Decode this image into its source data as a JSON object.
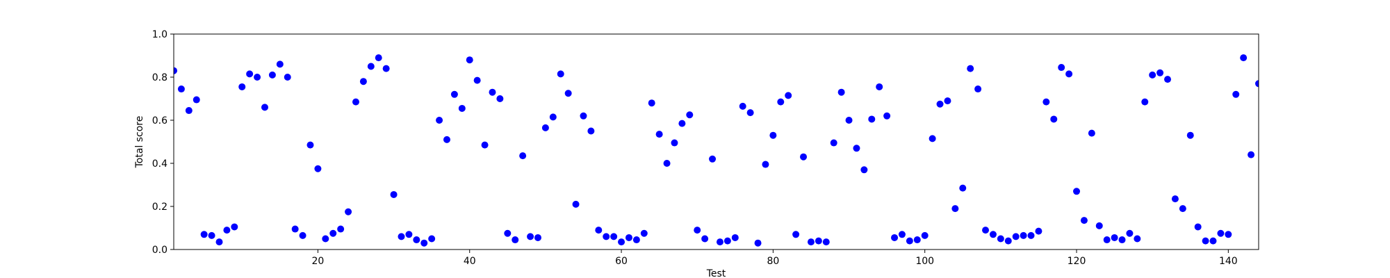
{
  "chart_data": {
    "type": "scatter",
    "xlabel": "Test",
    "ylabel": "Total score",
    "xlim": [
      1,
      144
    ],
    "ylim": [
      0.0,
      1.0
    ],
    "xticks": [
      20,
      40,
      60,
      80,
      100,
      120,
      140
    ],
    "xtick_labels": [
      "20",
      "40",
      "60",
      "80",
      "100",
      "120",
      "140"
    ],
    "yticks": [
      0.0,
      0.2,
      0.4,
      0.6,
      0.8,
      1.0
    ],
    "ytick_labels": [
      "0.0",
      "0.2",
      "0.4",
      "0.6",
      "0.8",
      "1.0"
    ],
    "grid": false,
    "marker_color": "#0000ff",
    "x": [
      1,
      2,
      3,
      4,
      5,
      6,
      7,
      8,
      9,
      10,
      11,
      12,
      13,
      14,
      15,
      16,
      17,
      18,
      19,
      20,
      21,
      22,
      23,
      24,
      25,
      26,
      27,
      28,
      29,
      30,
      31,
      32,
      33,
      34,
      35,
      36,
      37,
      38,
      39,
      40,
      41,
      42,
      43,
      44,
      45,
      46,
      47,
      48,
      49,
      50,
      51,
      52,
      53,
      54,
      55,
      56,
      57,
      58,
      59,
      60,
      61,
      62,
      63,
      64,
      65,
      66,
      67,
      68,
      69,
      70,
      71,
      72,
      73,
      74,
      75,
      76,
      77,
      78,
      79,
      80,
      81,
      82,
      83,
      84,
      85,
      86,
      87,
      88,
      89,
      90,
      91,
      92,
      93,
      94,
      95,
      96,
      97,
      98,
      99,
      100,
      101,
      102,
      103,
      104,
      105,
      106,
      107,
      108,
      109,
      110,
      111,
      112,
      113,
      114,
      115,
      116,
      117,
      118,
      119,
      120,
      121,
      122,
      123,
      124,
      125,
      126,
      127,
      128,
      129,
      130,
      131,
      132,
      133,
      134,
      135,
      136,
      137,
      138,
      139,
      140,
      141,
      142,
      143,
      144
    ],
    "y": [
      0.83,
      0.745,
      0.645,
      0.695,
      0.07,
      0.065,
      0.035,
      0.09,
      0.105,
      0.755,
      0.815,
      0.8,
      0.66,
      0.81,
      0.86,
      0.8,
      0.095,
      0.065,
      0.485,
      0.375,
      0.05,
      0.075,
      0.095,
      0.175,
      0.685,
      0.78,
      0.85,
      0.89,
      0.84,
      0.255,
      0.06,
      0.07,
      0.045,
      0.03,
      0.05,
      0.6,
      0.51,
      0.72,
      0.655,
      0.88,
      0.785,
      0.485,
      0.73,
      0.7,
      0.075,
      0.045,
      0.435,
      0.06,
      0.055,
      0.565,
      0.615,
      0.815,
      0.725,
      0.21,
      0.62,
      0.55,
      0.09,
      0.06,
      0.06,
      0.035,
      0.055,
      0.045,
      0.075,
      0.68,
      0.535,
      0.4,
      0.495,
      0.585,
      0.625,
      0.09,
      0.05,
      0.42,
      0.035,
      0.04,
      0.055,
      0.665,
      0.635,
      0.03,
      0.395,
      0.53,
      0.685,
      0.715,
      0.07,
      0.43,
      0.035,
      0.04,
      0.035,
      0.495,
      0.73,
      0.6,
      0.47,
      0.37,
      0.605,
      0.755,
      0.62,
      0.055,
      0.07,
      0.04,
      0.045,
      0.065,
      0.515,
      0.675,
      0.69,
      0.19,
      0.285,
      0.84,
      0.745,
      0.09,
      0.07,
      0.05,
      0.04,
      0.06,
      0.065,
      0.065,
      0.085,
      0.685,
      0.605,
      0.845,
      0.815,
      0.27,
      0.135,
      0.54,
      0.11,
      0.045,
      0.055,
      0.045,
      0.075,
      0.05,
      0.685,
      0.81,
      0.82,
      0.79,
      0.235,
      0.19,
      0.53,
      0.105,
      0.04,
      0.04,
      0.075,
      0.07,
      0.72,
      0.89,
      0.44,
      0.77
    ]
  }
}
